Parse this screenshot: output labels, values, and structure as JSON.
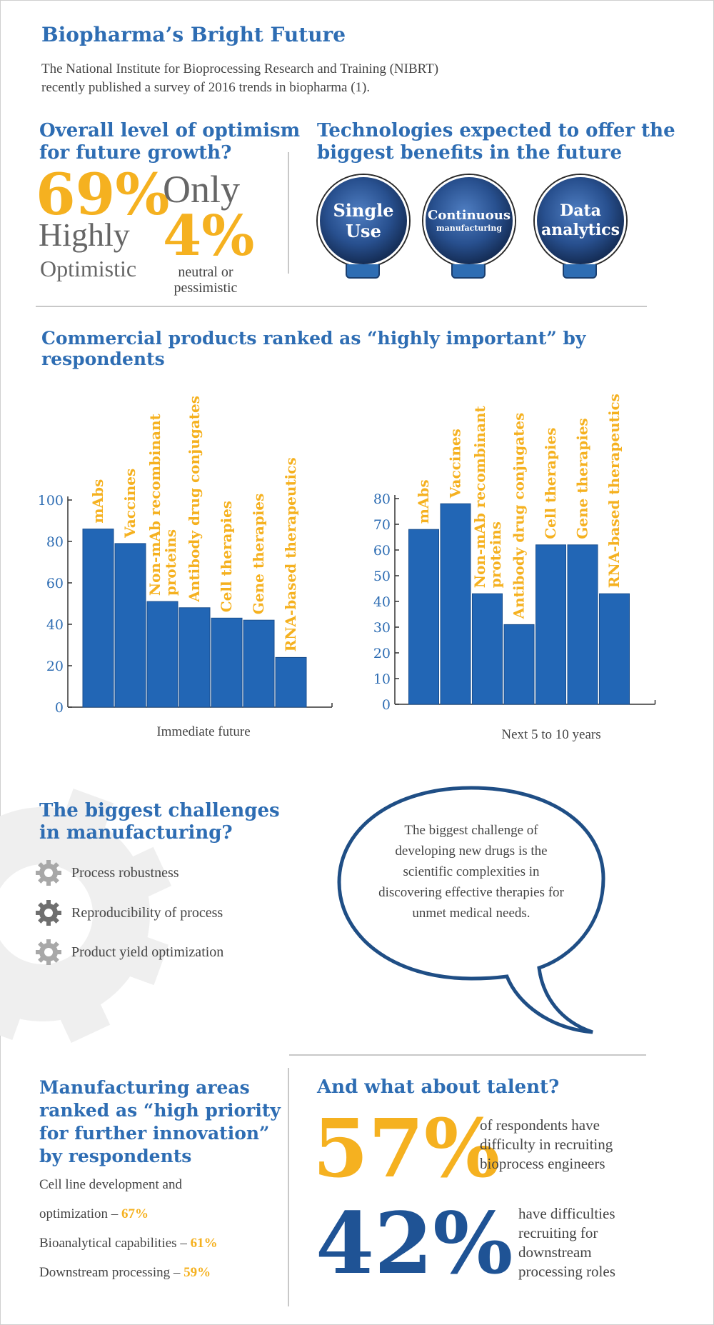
{
  "header": {
    "title": "Biopharma’s Bright Future",
    "intro_line1": "The National Institute for Bioprocessing Research and Training (NIBRT)",
    "intro_line2": "recently published a survey of 2016 trends in biopharma (1)."
  },
  "optimism": {
    "heading_line1": "Overall level of optimism",
    "heading_line2": "for future growth?",
    "pct_high": "69%",
    "label_high_1": "Highly",
    "label_high_2": "Optimistic",
    "only": "Only",
    "pct_low": "4%",
    "label_low_1": "neutral or",
    "label_low_2": "pessimistic"
  },
  "technologies": {
    "heading_line1": "Technologies expected to offer the",
    "heading_line2": "biggest benefits in the future",
    "items": [
      {
        "line1": "Single",
        "line2": "Use"
      },
      {
        "line1": "Continuous",
        "line2": "manufacturing"
      },
      {
        "line1": "Data",
        "line2": "analytics"
      }
    ]
  },
  "products_heading": "Commercial products ranked as “highly important” by respondents",
  "chart_data": [
    {
      "type": "bar",
      "title": "",
      "xlabel": "Immediate future",
      "ylabel": "",
      "categories": [
        "mAbs",
        "Vaccines",
        "Non-mAb recombinant proteins",
        "Antibody drug conjugates",
        "Cell therapies",
        "Gene therapies",
        "RNA-based therapeutics"
      ],
      "values": [
        86,
        79,
        51,
        48,
        43,
        42,
        24
      ],
      "ylim": [
        0,
        100
      ],
      "yticks": [
        0,
        20,
        40,
        60,
        80,
        100
      ],
      "bar_color": "#2266b5",
      "label_color": "#f5b120"
    },
    {
      "type": "bar",
      "title": "",
      "xlabel": "Next 5 to 10 years",
      "ylabel": "",
      "categories": [
        "mAbs",
        "Vaccines",
        "Non-mAb recombinant proteins",
        "Antibody drug conjugates",
        "Cell therapies",
        "Gene therapies",
        "RNA-based therapeutics"
      ],
      "values": [
        68,
        78,
        43,
        31,
        62,
        62,
        43
      ],
      "ylim": [
        0,
        80
      ],
      "yticks": [
        0,
        10,
        20,
        30,
        40,
        50,
        60,
        70,
        80
      ],
      "bar_color": "#2266b5",
      "label_color": "#f5b120"
    }
  ],
  "challenges": {
    "heading_line1": "The biggest challenges",
    "heading_line2": "in manufacturing?",
    "items": [
      "Process robustness",
      "Reproducibility of process",
      "Product yield optimization"
    ],
    "quote": "The biggest challenge of developing new drugs is the scientific complexities in discovering effective therapies for unmet medical needs."
  },
  "manufacturing": {
    "heading_line1": "Manufacturing areas",
    "heading_line2": "ranked as “high priority",
    "heading_line3": "for further innovation”",
    "heading_line4": "by respondents",
    "item1_line1": "Cell line development and",
    "item1_line2": "optimization – ",
    "item1_pct": "67%",
    "item2_label": "Bioanalytical capabilities – ",
    "item2_pct": "61%",
    "item3_label": "Downstream processing – ",
    "item3_pct": "59%"
  },
  "talent": {
    "heading": "And what about talent?",
    "pct1": "57%",
    "text1_line1": "of respondents have",
    "text1_line2": "difficulty in recruiting",
    "text1_line3": "bioprocess engineers",
    "pct2": "42%",
    "text2_line1": "have difficulties",
    "text2_line2": "recruiting for",
    "text2_line3": "downstream",
    "text2_line4": "processing roles"
  },
  "colors": {
    "heading_blue": "#2e6db3",
    "orange": "#f5b120",
    "navy": "#1f5395",
    "bar_blue": "#2266b5"
  }
}
